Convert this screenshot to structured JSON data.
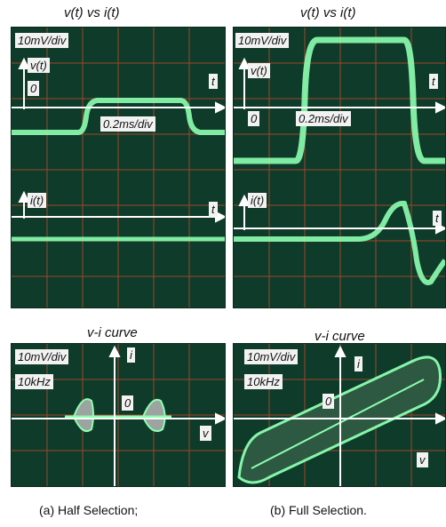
{
  "panels": {
    "a_top": {
      "title": "v(t) vs i(t)",
      "scale": "10mV/div",
      "v_label": "v(t)",
      "origin": "0",
      "t_label_v": "t",
      "timebase": "0.2ms/div",
      "i_label": "i(t)",
      "t_label_i": "t"
    },
    "b_top": {
      "title": "v(t) vs i(t)",
      "scale": "10mV/div",
      "v_label": "v(t)",
      "origin": "0",
      "t_label_v": "t",
      "timebase": "0.2ms/div",
      "i_label": "i(t)",
      "t_label_i": "t"
    },
    "a_bottom": {
      "title": "v-i curve",
      "scale": "10mV/div",
      "freq": "10kHz",
      "i_axis": "i",
      "origin": "0",
      "v_axis": "v"
    },
    "b_bottom": {
      "title": "v-i curve",
      "scale": "10mV/div",
      "freq": "10kHz",
      "i_axis": "i",
      "origin": "0",
      "v_axis": "v"
    }
  },
  "captions": {
    "a": "(a) Half Selection;",
    "b": "(b) Full Selection."
  },
  "colors": {
    "screen": "#0f3b2a",
    "grid": "#c24a2a",
    "trace": "#8cffb0",
    "axis": "#ffffff"
  }
}
